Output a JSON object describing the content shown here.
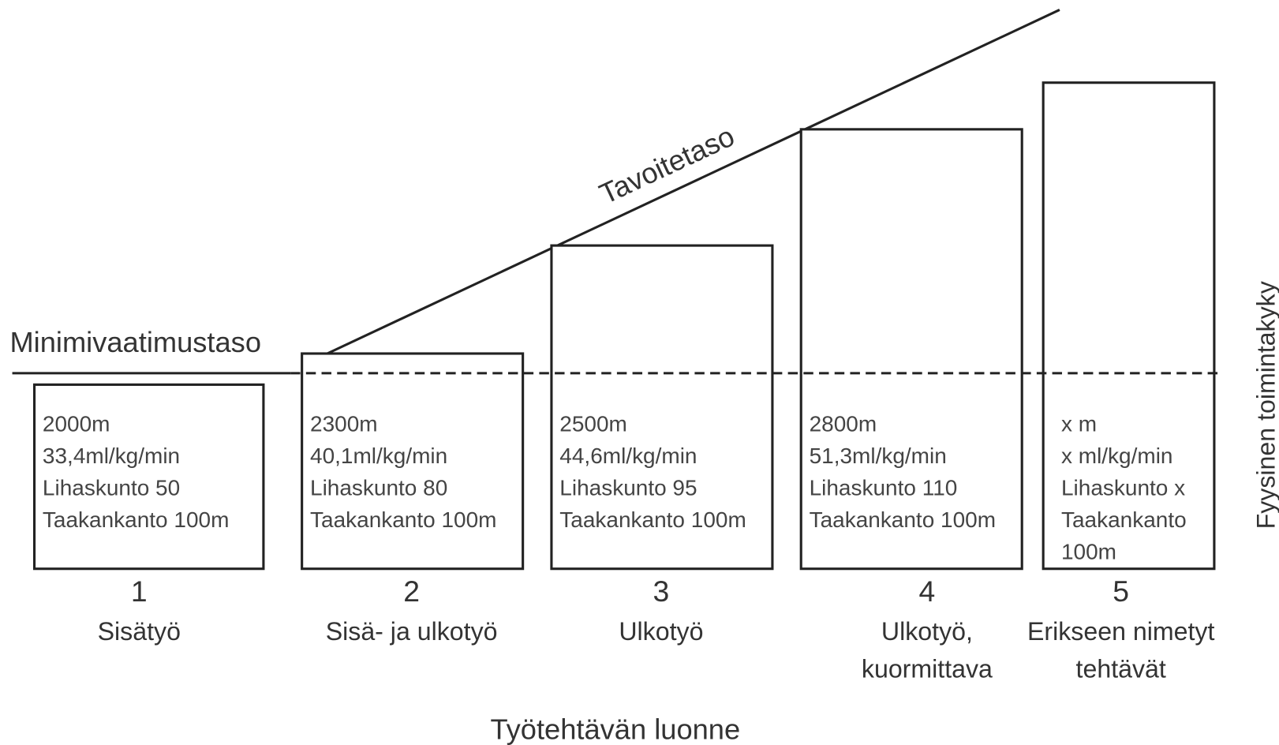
{
  "minimum_label": "Minimivaatimustaso",
  "target_label": "Tavoitetaso",
  "y_axis_label": "Fyysinen toimintakyky",
  "x_axis_label": "Työtehtävän luonne",
  "nodes": [
    {
      "number": "1",
      "label": [
        "Sisätyö"
      ],
      "details": [
        "2000m",
        "33,4ml/kg/min",
        "Lihaskunto 50",
        "Taakankanto 100m"
      ]
    },
    {
      "number": "2",
      "label": [
        "Sisä- ja ulkotyö"
      ],
      "details": [
        "2300m",
        "40,1ml/kg/min",
        "Lihaskunto 80",
        "Taakankanto 100m"
      ]
    },
    {
      "number": "3",
      "label": [
        "Ulkotyö"
      ],
      "details": [
        "2500m",
        "44,6ml/kg/min",
        "Lihaskunto 95",
        "Taakankanto 100m"
      ]
    },
    {
      "number": "4",
      "label": [
        "Ulkotyö,",
        "kuormittava"
      ],
      "details": [
        "2800m",
        "51,3ml/kg/min",
        "Lihaskunto 110",
        "Taakankanto 100m"
      ]
    },
    {
      "number": "5",
      "label": [
        "Erikseen nimetyt",
        "tehtävät"
      ],
      "details": [
        "x m",
        "x ml/kg/min",
        "Lihaskunto x",
        "Taakankanto",
        "100m"
      ]
    }
  ]
}
